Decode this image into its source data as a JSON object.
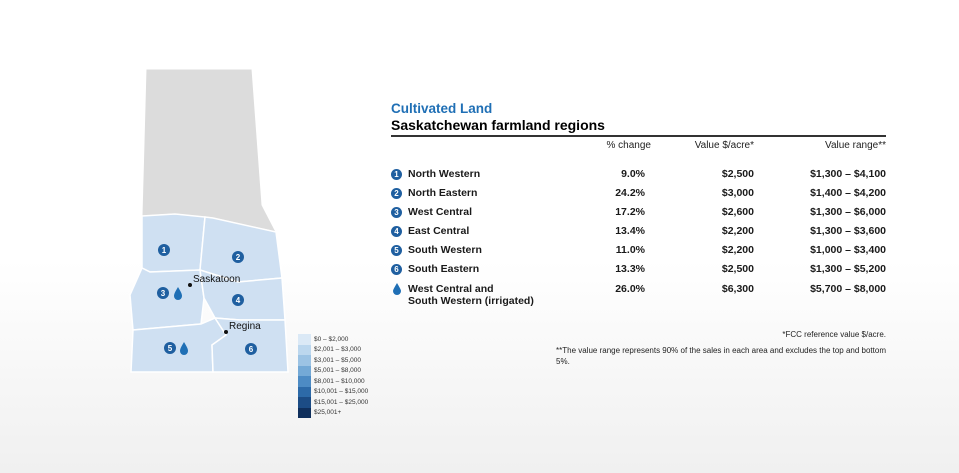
{
  "header": {
    "title": "Cultivated Land",
    "subtitle": "Saskatchewan farmland regions"
  },
  "table": {
    "columns": [
      "% change",
      "Value $/acre*",
      "Value range**"
    ],
    "rows": [
      {
        "marker": "1",
        "region": "North Western",
        "change": "9.0%",
        "value": "$2,500",
        "range": "$1,300 – $4,100"
      },
      {
        "marker": "2",
        "region": "North Eastern",
        "change": "24.2%",
        "value": "$3,000",
        "range": "$1,400 – $4,200"
      },
      {
        "marker": "3",
        "region": "West Central",
        "change": "17.2%",
        "value": "$2,600",
        "range": "$1,300 – $6,000"
      },
      {
        "marker": "4",
        "region": "East Central",
        "change": "13.4%",
        "value": "$2,200",
        "range": "$1,300 – $3,600"
      },
      {
        "marker": "5",
        "region": "South Western",
        "change": "11.0%",
        "value": "$2,200",
        "range": "$1,000 – $3,400"
      },
      {
        "marker": "6",
        "region": "South Eastern",
        "change": "13.3%",
        "value": "$2,500",
        "range": "$1,300 – $5,200"
      },
      {
        "marker": "drop",
        "region_line1": "West Central and",
        "region_line2": "South Western (irrigated)",
        "change": "26.0%",
        "value": "$6,300",
        "range": "$5,700 – $8,000"
      }
    ]
  },
  "notes": {
    "reference": "*FCC reference value $/acre.",
    "range": "**The value range represents 90% of the sales in each area and excludes the top and bottom 5%."
  },
  "map": {
    "cities": [
      "Saskatoon",
      "Regina"
    ],
    "region_markers": [
      "1",
      "2",
      "3",
      "4",
      "5",
      "6"
    ]
  },
  "legend": {
    "items": [
      {
        "label": "$0 – $2,000",
        "color": "#dbe9f6"
      },
      {
        "label": "$2,001 – $3,000",
        "color": "#bcd7ee"
      },
      {
        "label": "$3,001 – $5,000",
        "color": "#9cc3e4"
      },
      {
        "label": "$5,001 – $8,000",
        "color": "#74a9d6"
      },
      {
        "label": "$8,001 – $10,000",
        "color": "#4d8bc4"
      },
      {
        "label": "$10,001 – $15,000",
        "color": "#2d6aa8"
      },
      {
        "label": "$15,001 – $25,000",
        "color": "#1c4c85"
      },
      {
        "label": "$25,001+",
        "color": "#0f2f5c"
      }
    ]
  },
  "colors": {
    "accent": "#1f6fb5",
    "marker": "#1f5fa0",
    "map_north": "#dcdcdc",
    "map_regions": "#c9ddf1"
  }
}
